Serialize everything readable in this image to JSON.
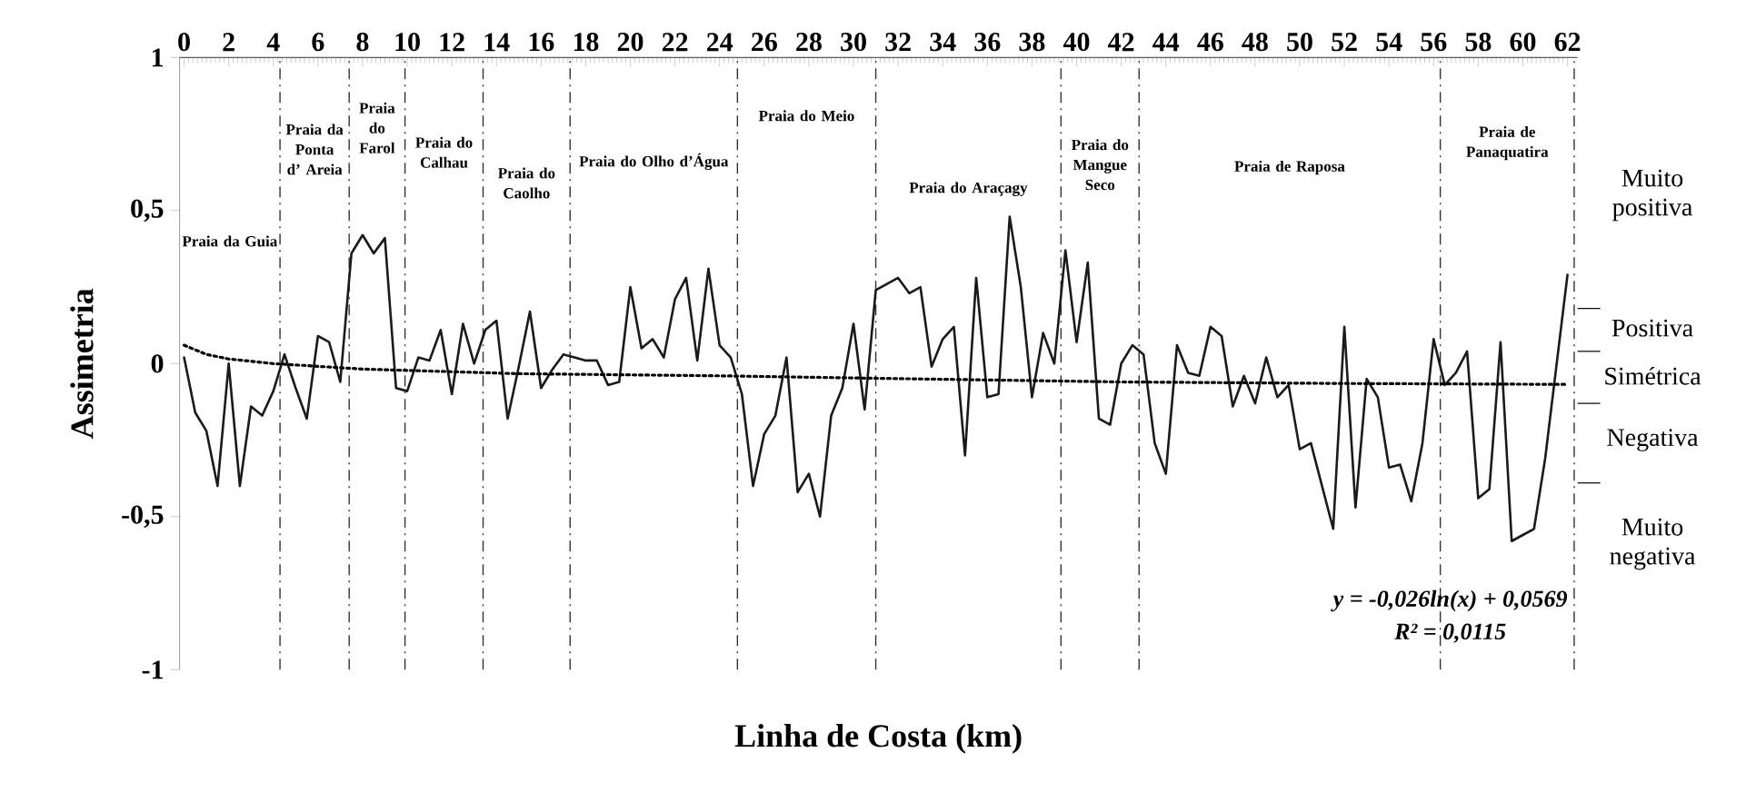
{
  "chart_data": {
    "type": "line",
    "xlabel": "Linha de Costa (km)",
    "ylabel": "Assimetria",
    "x": [
      0,
      0.5,
      1,
      1.5,
      2,
      2.5,
      3,
      3.5,
      4,
      4.5,
      5,
      5.5,
      6,
      6.5,
      7,
      7.5,
      8,
      8.5,
      9,
      9.5,
      10,
      10.5,
      11,
      11.5,
      12,
      12.5,
      13,
      13.5,
      14,
      14.5,
      15,
      15.5,
      16,
      16.5,
      17,
      17.5,
      18,
      18.5,
      19,
      19.5,
      20,
      20.5,
      21,
      21.5,
      22,
      22.5,
      23,
      23.5,
      24,
      24.5,
      25,
      25.5,
      26,
      26.5,
      27,
      27.5,
      28,
      28.5,
      29,
      29.5,
      30,
      30.5,
      31,
      31.5,
      32,
      32.5,
      33,
      33.5,
      34,
      34.5,
      35,
      35.5,
      36,
      36.5,
      37,
      37.5,
      38,
      38.5,
      39,
      39.5,
      40,
      40.5,
      41,
      41.5,
      42,
      42.5,
      43,
      43.5,
      44,
      44.5,
      45,
      45.5,
      46,
      46.5,
      47,
      47.5,
      48,
      48.5,
      49,
      49.5,
      50,
      50.5,
      51,
      51.5,
      52,
      52.5,
      53,
      53.5,
      54,
      54.5,
      55,
      55.5,
      56,
      56.5,
      57,
      57.5,
      58,
      58.5,
      59,
      59.5,
      60,
      60.5,
      61,
      61.5,
      62
    ],
    "series": [
      {
        "color": "#1a1a1a",
        "line_style": "solid",
        "values": [
          0.02,
          -0.16,
          -0.22,
          -0.4,
          0.0,
          -0.4,
          -0.14,
          -0.17,
          -0.09,
          0.03,
          -0.08,
          -0.18,
          0.09,
          0.07,
          -0.06,
          0.36,
          0.42,
          0.36,
          0.41,
          -0.08,
          -0.09,
          0.02,
          0.01,
          0.11,
          -0.1,
          0.13,
          0.0,
          0.11,
          0.14,
          -0.18,
          -0.01,
          0.17,
          -0.08,
          -0.02,
          0.03,
          0.02,
          0.01,
          0.01,
          -0.07,
          -0.06,
          0.25,
          0.05,
          0.08,
          0.02,
          0.21,
          0.28,
          0.01,
          0.31,
          0.06,
          0.02,
          -0.1,
          -0.4,
          -0.23,
          -0.17,
          0.02,
          -0.42,
          -0.36,
          -0.5,
          -0.17,
          -0.08,
          0.13,
          -0.15,
          0.24,
          0.26,
          0.28,
          0.23,
          0.25,
          -0.01,
          0.08,
          0.12,
          -0.3,
          0.28,
          -0.11,
          -0.1,
          0.48,
          0.25,
          -0.11,
          0.1,
          0.0,
          0.37,
          0.07,
          0.33,
          -0.18,
          -0.2,
          0.0,
          0.06,
          0.03,
          -0.26,
          -0.36,
          0.06,
          -0.03,
          -0.04,
          0.12,
          0.09,
          -0.14,
          -0.04,
          -0.13,
          0.02,
          -0.11,
          -0.07,
          -0.28,
          -0.26,
          -0.4,
          -0.54,
          0.12,
          -0.47,
          -0.05,
          -0.11,
          -0.34,
          -0.33,
          -0.45,
          -0.26,
          0.08,
          -0.07,
          -0.03,
          0.04,
          -0.44,
          -0.41,
          0.07,
          -0.58,
          -0.56,
          -0.54,
          -0.31,
          -0.01,
          0.29
        ]
      },
      {
        "type": "line",
        "color": "#000000",
        "line_style": "dotted",
        "x": [
          0,
          1,
          2,
          4,
          8,
          15,
          24,
          31,
          42,
          52,
          62
        ],
        "values": [
          0.06,
          0.03,
          0.015,
          0.0,
          -0.018,
          -0.033,
          -0.04,
          -0.048,
          -0.06,
          -0.065,
          -0.068
        ]
      }
    ],
    "xlim": [
      -0.2,
      62.45
    ],
    "ylim": [
      -1,
      1
    ],
    "xticks": [
      0,
      2,
      4,
      6,
      8,
      10,
      12,
      14,
      16,
      18,
      20,
      22,
      24,
      26,
      28,
      30,
      32,
      34,
      36,
      38,
      40,
      42,
      44,
      46,
      48,
      50,
      52,
      54,
      56,
      58,
      60,
      62
    ],
    "yticks": [
      {
        "value": -1,
        "label": "-1"
      },
      {
        "value": -0.5,
        "label": "-0,5"
      },
      0,
      {
        "value": 0.5,
        "label": "0,5"
      },
      1
    ],
    "ref_lines": [
      {
        "axis": "x",
        "value": 4.3,
        "color": "#333333",
        "line_style": "dashed"
      },
      {
        "axis": "x",
        "value": 7.4,
        "color": "#333333",
        "line_style": "dashed"
      },
      {
        "axis": "x",
        "value": 9.9,
        "color": "#333333",
        "line_style": "dashed"
      },
      {
        "axis": "x",
        "value": 13.4,
        "color": "#333333",
        "line_style": "dashed"
      },
      {
        "axis": "x",
        "value": 17.3,
        "color": "#333333",
        "line_style": "dashed"
      },
      {
        "axis": "x",
        "value": 24.8,
        "color": "#333333",
        "line_style": "dashed"
      },
      {
        "axis": "x",
        "value": 31.0,
        "color": "#333333",
        "line_style": "dashed"
      },
      {
        "axis": "x",
        "value": 39.3,
        "color": "#333333",
        "line_style": "dashed"
      },
      {
        "axis": "x",
        "value": 42.8,
        "color": "#333333",
        "line_style": "dashed"
      },
      {
        "axis": "x",
        "value": 56.3,
        "color": "#333333",
        "line_style": "dashed"
      },
      {
        "axis": "x",
        "value": 62.3,
        "color": "#333333",
        "line_style": "dashed"
      }
    ],
    "annotations": [
      "Praia da Guia",
      "Praia da Ponta d’ Areia",
      "Praia do Farol",
      "Praia do Calhau",
      "Praia do Caolho",
      "Praia do Olho d’Água",
      "Praia do Meio",
      "Praia do Araçagy",
      "Praia do Mangue Seco",
      "Praia de Raposa",
      "Praia de Panaquatira",
      "Muito positiva",
      "Positiva",
      "Simétrica",
      "Negativa",
      "Muito negativa",
      "y = -0,026ln(x) + 0,0569",
      "R² = 0,0115"
    ],
    "grid": false
  }
}
